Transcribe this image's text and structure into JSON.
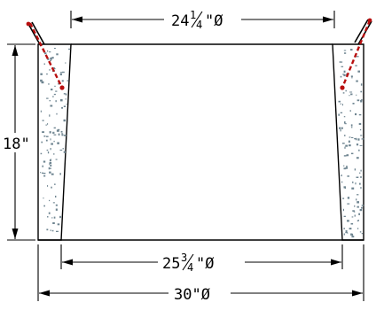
{
  "dimensions": {
    "top_diameter": {
      "whole": "24",
      "num": "1",
      "den": "4",
      "suffix": "\"Ø"
    },
    "height": "18\"",
    "bottom_inner_diameter": {
      "whole": "25",
      "num": "3",
      "den": "4",
      "suffix": "\"Ø"
    },
    "outer_diameter": "30\"Ø"
  },
  "colors": {
    "line": "#000000",
    "rebar": "#b80f0f",
    "aggregate": "#6f8591"
  }
}
